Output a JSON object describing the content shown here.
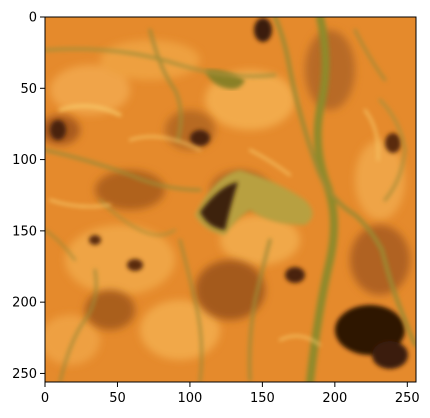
{
  "chart_data": {
    "type": "heatmap",
    "title": "",
    "xlabel": "",
    "ylabel": "",
    "xlim": [
      0,
      256
    ],
    "ylim": [
      256,
      0
    ],
    "x_ticks": [
      {
        "value": 0,
        "label": "0"
      },
      {
        "value": 50,
        "label": "50"
      },
      {
        "value": 100,
        "label": "100"
      },
      {
        "value": 150,
        "label": "150"
      },
      {
        "value": 200,
        "label": "200"
      },
      {
        "value": 250,
        "label": "250"
      }
    ],
    "y_ticks": [
      {
        "value": 0,
        "label": "0"
      },
      {
        "value": 50,
        "label": "50"
      },
      {
        "value": 100,
        "label": "100"
      },
      {
        "value": 150,
        "label": "150"
      },
      {
        "value": 200,
        "label": "200"
      },
      {
        "value": 250,
        "label": "250"
      }
    ],
    "image_content": "false-color aerial image of meandering river channels and wetlands",
    "colors": {
      "base": "#e8902f",
      "channel": "#8f8a2a",
      "dark_pool": "#3a1a08",
      "highlight": "#f5c060"
    },
    "grid": false,
    "legend": "none"
  }
}
